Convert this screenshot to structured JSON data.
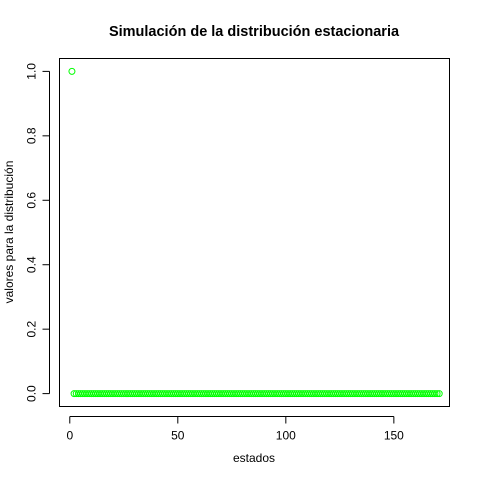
{
  "chart_data": {
    "type": "scatter",
    "title": "Simulación de la distribución estacionaria",
    "xlabel": "estados",
    "ylabel": "valores para la distribución",
    "xlim": [
      -4.76,
      175.76
    ],
    "ylim": [
      -0.04,
      1.04
    ],
    "x_ticks": [
      0,
      50,
      100,
      150
    ],
    "x_tick_labels": [
      "0",
      "50",
      "100",
      "150"
    ],
    "y_ticks": [
      0.0,
      0.2,
      0.4,
      0.6,
      0.8,
      1.0
    ],
    "y_tick_labels": [
      "0.0",
      "0.2",
      "0.4",
      "0.6",
      "0.8",
      "1.0"
    ],
    "grid": false,
    "point_color": "#00FF00",
    "series": [
      {
        "x_start": 1,
        "x_end": 171,
        "values_rule": "x=1 has value 1.0; all other states have value 0.0",
        "first_value": 1.0,
        "other_value": 0.0
      }
    ]
  }
}
